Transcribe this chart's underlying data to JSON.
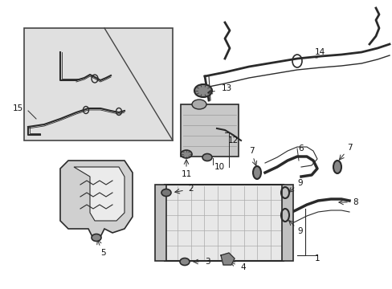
{
  "bg_color": "#ffffff",
  "line_color": "#2a2a2a",
  "label_color": "#111111",
  "inset_bg": "#e0e0e0",
  "inset_border": "#444444",
  "fig_width": 4.89,
  "fig_height": 3.6,
  "dpi": 100,
  "fs": 7.5,
  "lw": 1.0
}
